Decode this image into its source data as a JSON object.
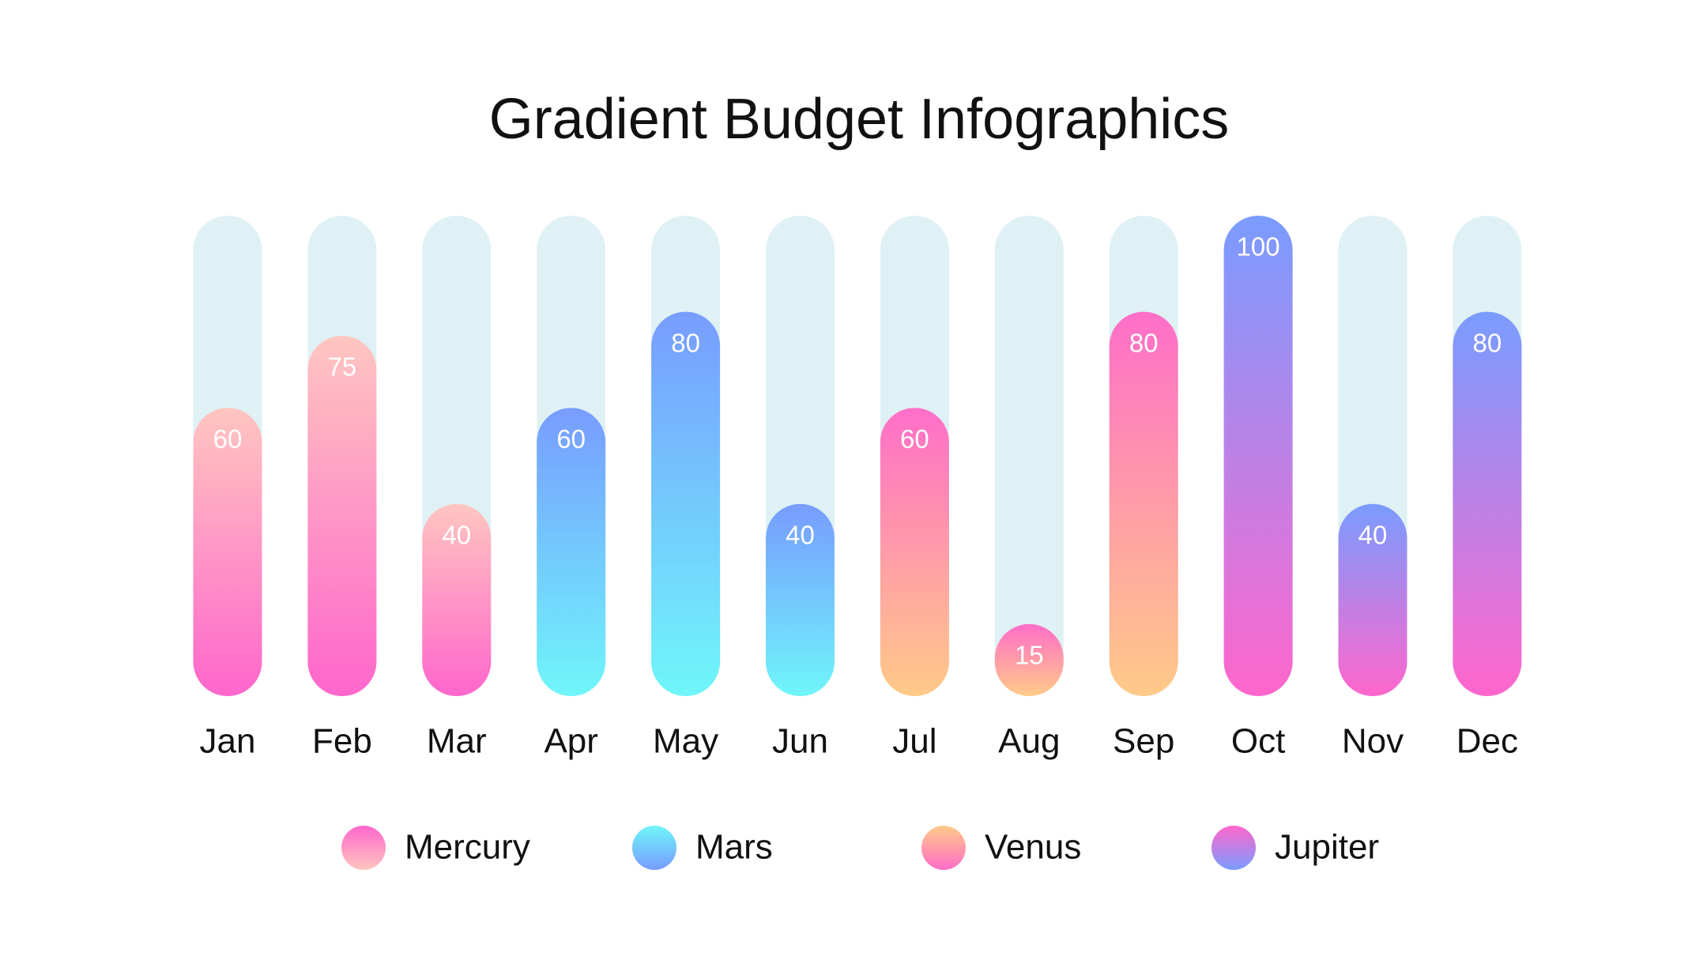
{
  "chart_data": {
    "type": "pill-bar",
    "title": "Gradient Budget Infographics",
    "categories": [
      "Jan",
      "Feb",
      "Mar",
      "Apr",
      "May",
      "Jun",
      "Jul",
      "Aug",
      "Sep",
      "Oct",
      "Nov",
      "Dec"
    ],
    "ylim": [
      0,
      100
    ],
    "track_color": "#dff1f4",
    "series": [
      {
        "name": "Mercury",
        "colors": [
          "#ffc6c0",
          "#ff66cc"
        ],
        "values": [
          60,
          75,
          40,
          null,
          null,
          null,
          null,
          null,
          null,
          null,
          null,
          null
        ]
      },
      {
        "name": "Mars",
        "colors": [
          "#789cff",
          "#6ff6fa"
        ],
        "values": [
          null,
          null,
          null,
          60,
          80,
          40,
          null,
          null,
          null,
          null,
          null,
          null
        ]
      },
      {
        "name": "Venus",
        "colors": [
          "#ff6ec8",
          "#ffca88"
        ],
        "values": [
          null,
          null,
          null,
          null,
          null,
          null,
          60,
          15,
          80,
          null,
          null,
          null
        ]
      },
      {
        "name": "Jupiter",
        "colors": [
          "#7a9cff",
          "#ff66cc"
        ],
        "values": [
          null,
          null,
          null,
          null,
          null,
          null,
          null,
          null,
          null,
          100,
          40,
          80
        ]
      }
    ]
  }
}
